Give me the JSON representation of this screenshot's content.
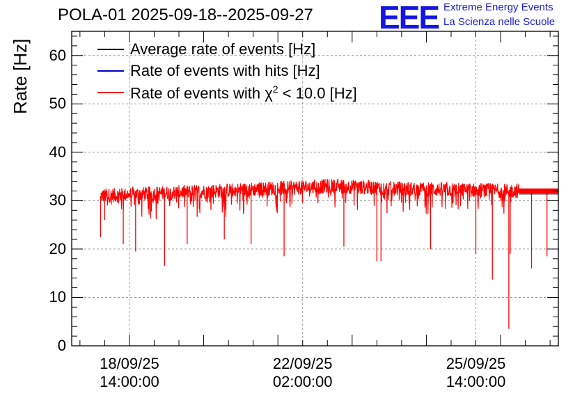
{
  "header": {
    "title": "POLA-01 2025-09-18--2025-09-27",
    "logo_text": "EEE",
    "logo_line1": "Extreme Energy Events",
    "logo_line2": "La Scienza nelle Scuole",
    "logo_color": "#1515e6"
  },
  "chart_data": {
    "type": "line",
    "ylabel": "Rate [Hz]",
    "ylim": [
      0,
      65
    ],
    "yticks": [
      0,
      10,
      20,
      30,
      40,
      50,
      60
    ],
    "xlim": [
      "2025-09-17 10:00",
      "2025-09-27 06:00"
    ],
    "xticks": [
      {
        "at": "2025-09-18 14:00",
        "line1": "18/09/25",
        "line2": "14:00:00"
      },
      {
        "at": "2025-09-22 02:00",
        "line1": "22/09/25",
        "line2": "02:00:00"
      },
      {
        "at": "2025-09-25 14:00",
        "line1": "25/09/25",
        "line2": "14:00:00"
      }
    ],
    "grid": true,
    "legend_position": "top-left",
    "series": [
      {
        "name": "Average rate of events [Hz]",
        "color": "#000000",
        "value": 31.8,
        "x_start": "2025-09-26 11:00",
        "x_end": "2025-09-27 06:00"
      },
      {
        "name": "Rate of events with hits [Hz]",
        "color": "#0000cc"
      },
      {
        "name": "Rate of events with χ² < 10.0 [Hz]",
        "name_prefix": "Rate of events with ",
        "name_symbol": "χ",
        "name_sup": "2",
        "name_suffix": " < 10.0 [Hz]",
        "color": "#ff0000",
        "x_start": "2025-09-18 00:00",
        "x_end": "2025-09-26 11:00",
        "baseline": [
          [
            0,
            31.0
          ],
          [
            0.35,
            32.3
          ],
          [
            0.55,
            33.0
          ],
          [
            0.75,
            32.4
          ],
          [
            1.0,
            32.0
          ]
        ],
        "dips": [
          {
            "x": "2025-09-18 00:00",
            "y": 22.5
          },
          {
            "x": "2025-09-18 02:00",
            "y": 26.0
          },
          {
            "x": "2025-09-18 11:00",
            "y": 21.0
          },
          {
            "x": "2025-09-18 17:00",
            "y": 19.5
          },
          {
            "x": "2025-09-19 07:00",
            "y": 16.5
          },
          {
            "x": "2025-09-19 18:00",
            "y": 21.0
          },
          {
            "x": "2025-09-20 12:00",
            "y": 22.0
          },
          {
            "x": "2025-09-21 01:00",
            "y": 21.0
          },
          {
            "x": "2025-09-21 17:00",
            "y": 18.5
          },
          {
            "x": "2025-09-22 22:00",
            "y": 20.5
          },
          {
            "x": "2025-09-23 14:00",
            "y": 17.5
          },
          {
            "x": "2025-09-23 16:00",
            "y": 17.5
          },
          {
            "x": "2025-09-24 16:00",
            "y": 20.0
          },
          {
            "x": "2025-09-25 14:00",
            "y": 19.0
          },
          {
            "x": "2025-09-25 22:00",
            "y": 13.7
          },
          {
            "x": "2025-09-26 06:00",
            "y": 3.5
          },
          {
            "x": "2025-09-26 06:40",
            "y": 19.0
          },
          {
            "x": "2025-09-26 17:00",
            "y": 16.0
          },
          {
            "x": "2025-09-27 00:30",
            "y": 18.5
          }
        ]
      }
    ]
  }
}
